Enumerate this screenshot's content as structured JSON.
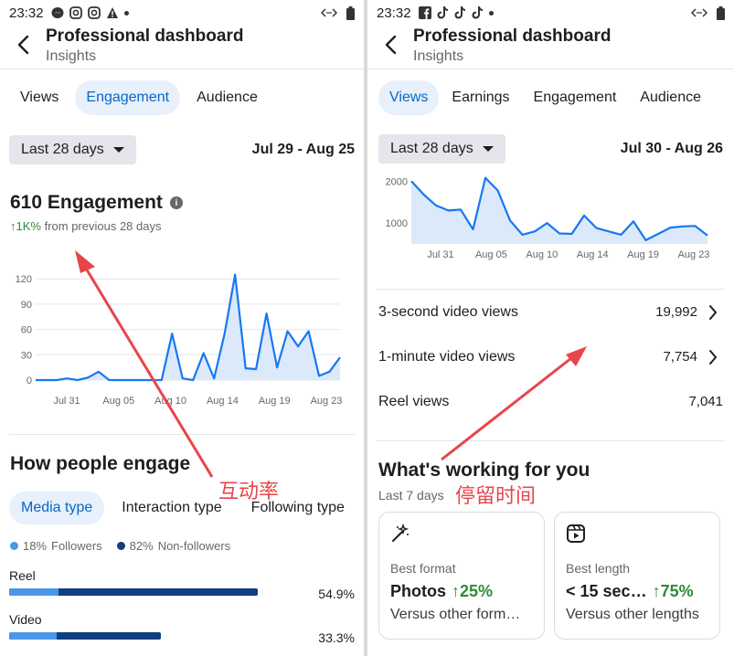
{
  "left": {
    "status": {
      "time": "23:32",
      "icons": [
        "messenger-icon",
        "instagram-icon",
        "instagram-icon",
        "alert-icon"
      ]
    },
    "header": {
      "title": "Professional dashboard",
      "subtitle": "Insights"
    },
    "tabs": [
      {
        "label": "Views",
        "active": false
      },
      {
        "label": "Engagement",
        "active": true
      },
      {
        "label": "Audience",
        "active": false
      }
    ],
    "range": {
      "label": "Last 28 days",
      "dates": "Jul 29 - Aug 25"
    },
    "metric": {
      "title": "610 Engagement",
      "change": "↑1K%",
      "change_text": "from previous 28 days"
    },
    "engage": {
      "title": "How people engage",
      "chips": [
        {
          "label": "Media type",
          "active": true
        },
        {
          "label": "Interaction type",
          "active": false
        },
        {
          "label": "Following type",
          "active": false
        }
      ],
      "legend": [
        {
          "pct": "18%",
          "label": "Followers",
          "color": "#4a97e8"
        },
        {
          "pct": "82%",
          "label": "Non-followers",
          "color": "#0f3f7c"
        }
      ],
      "rows": [
        {
          "label": "Reel",
          "value": "54.9%",
          "followers_fraction": 0.2,
          "total_fraction": 1.0
        },
        {
          "label": "Video",
          "value": "33.3%",
          "followers_fraction": 0.19,
          "total_fraction": 0.61
        }
      ]
    },
    "annotation": "互动率"
  },
  "right": {
    "status": {
      "time": "23:32",
      "icons": [
        "facebook-icon",
        "tiktok-icon",
        "tiktok-icon",
        "tiktok-icon"
      ]
    },
    "header": {
      "title": "Professional dashboard",
      "subtitle": "Insights"
    },
    "tabs": [
      {
        "label": "Views",
        "active": true
      },
      {
        "label": "Earnings",
        "active": false
      },
      {
        "label": "Engagement",
        "active": false
      },
      {
        "label": "Audience",
        "active": false
      }
    ],
    "range": {
      "label": "Last 28 days",
      "dates": "Jul 30 - Aug 26"
    },
    "rows": [
      {
        "label": "3-second video views",
        "value": "19,992",
        "chevron": true
      },
      {
        "label": "1-minute video views",
        "value": "7,754",
        "chevron": true
      },
      {
        "label": "Reel views",
        "value": "7,041",
        "chevron": false
      }
    ],
    "working": {
      "title": "What's working for you",
      "sub": "Last 7 days",
      "cards": [
        {
          "label": "Best format",
          "value": "Photos",
          "pct": "↑25%",
          "desc": "Versus other form…",
          "icon": "magic-wand-icon"
        },
        {
          "label": "Best length",
          "value": "< 15 sec…",
          "pct": "↑75%",
          "desc": "Versus other lengths",
          "icon": "reel-icon"
        }
      ]
    },
    "annotation": "停留时间"
  },
  "chart_data": [
    {
      "type": "area",
      "title": "",
      "x_ticks": [
        "Jul 31",
        "Aug 05",
        "Aug 10",
        "Aug 14",
        "Aug 19",
        "Aug 23"
      ],
      "y_ticks": [
        0,
        30,
        60,
        90,
        120
      ],
      "ylim": [
        0,
        130
      ],
      "values": [
        0,
        0,
        0,
        2,
        0,
        3,
        10,
        0,
        0,
        0,
        0,
        0,
        0,
        55,
        2,
        0,
        32,
        2,
        55,
        125,
        14,
        13,
        79,
        15,
        58,
        40,
        58,
        5,
        10,
        27
      ],
      "color": "#1877f2"
    },
    {
      "type": "area",
      "title": "",
      "x_ticks": [
        "Jul 31",
        "Aug 05",
        "Aug 10",
        "Aug 14",
        "Aug 19",
        "Aug 23"
      ],
      "y_ticks": [
        1000,
        2000
      ],
      "ylim": [
        500,
        2050
      ],
      "values": [
        2000,
        1680,
        1420,
        1300,
        1320,
        850,
        2080,
        1780,
        1060,
        720,
        800,
        1000,
        750,
        740,
        1180,
        880,
        800,
        720,
        1040,
        590,
        740,
        890,
        920,
        930,
        700
      ],
      "color": "#1877f2"
    }
  ]
}
